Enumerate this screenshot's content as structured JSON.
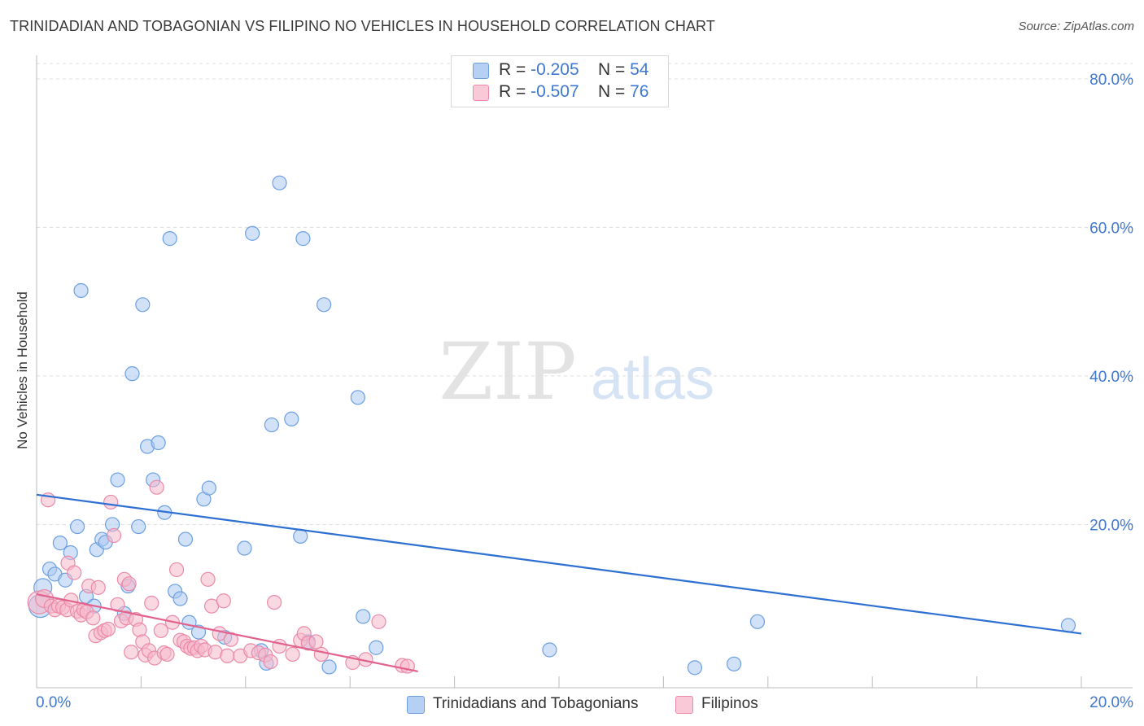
{
  "header": {
    "title": "TRINIDADIAN AND TOBAGONIAN VS FILIPINO NO VEHICLES IN HOUSEHOLD CORRELATION CHART",
    "source": "Source: ZipAtlas.com"
  },
  "watermark": {
    "zip": "ZIP",
    "atlas": "atlas"
  },
  "legend_top": [
    {
      "r_label": "R =",
      "r_value": "-0.205",
      "n_label": "N =",
      "n_value": "54"
    },
    {
      "r_label": "R =",
      "r_value": "-0.507",
      "n_label": "N =",
      "n_value": "76"
    }
  ],
  "legend_bottom": [
    {
      "label": "Trinidadians and Tobagonians"
    },
    {
      "label": "Filipinos"
    }
  ],
  "colors": {
    "blue_fill": "#a9c8f2",
    "blue_stroke": "#6d9fe0",
    "blue_line": "#2e6fd2",
    "pink_fill": "#f6b8cb",
    "pink_stroke": "#ea8aa8",
    "pink_line": "#e2628e",
    "axis_text": "#3f78d0",
    "grid": "#dddddd"
  },
  "chart_data": {
    "type": "scatter",
    "title": "TRINIDADIAN AND TOBAGONIAN VS FILIPINO NO VEHICLES IN HOUSEHOLD CORRELATION CHART",
    "xlabel": "",
    "ylabel": "No Vehicles in Household",
    "xlim": [
      0,
      20
    ],
    "ylim": [
      0,
      80
    ],
    "x_tick_labels": [
      "0.0%",
      "20.0%"
    ],
    "y_ticks": [
      20,
      40,
      60,
      80
    ],
    "y_tick_labels": [
      "20.0%",
      "40.0%",
      "60.0%",
      "80.0%"
    ],
    "legend_position": "top-center",
    "series": [
      {
        "name": "Trinidadians and Tobagonians",
        "R": -0.205,
        "N": 54,
        "trend": {
          "x": [
            0,
            20
          ],
          "y": [
            24.0,
            5.3
          ]
        },
        "points": [
          {
            "x": 0.07,
            "y": 9.0,
            "s": 3
          },
          {
            "x": 0.12,
            "y": 11.5,
            "s": 2
          },
          {
            "x": 0.25,
            "y": 14.0,
            "s": 1
          },
          {
            "x": 0.35,
            "y": 13.3,
            "s": 1
          },
          {
            "x": 0.45,
            "y": 17.5,
            "s": 1
          },
          {
            "x": 0.55,
            "y": 12.5,
            "s": 1
          },
          {
            "x": 0.65,
            "y": 16.2,
            "s": 1
          },
          {
            "x": 0.78,
            "y": 19.7,
            "s": 1
          },
          {
            "x": 0.85,
            "y": 51.5,
            "s": 1
          },
          {
            "x": 0.95,
            "y": 10.3,
            "s": 1
          },
          {
            "x": 1.1,
            "y": 9.0,
            "s": 1
          },
          {
            "x": 1.15,
            "y": 16.6,
            "s": 1
          },
          {
            "x": 1.25,
            "y": 18.0,
            "s": 1
          },
          {
            "x": 1.32,
            "y": 17.6,
            "s": 1
          },
          {
            "x": 1.45,
            "y": 20.0,
            "s": 1
          },
          {
            "x": 1.55,
            "y": 26.0,
            "s": 1
          },
          {
            "x": 1.68,
            "y": 8.0,
            "s": 1
          },
          {
            "x": 1.75,
            "y": 11.7,
            "s": 1
          },
          {
            "x": 1.83,
            "y": 40.3,
            "s": 1
          },
          {
            "x": 1.95,
            "y": 19.7,
            "s": 1
          },
          {
            "x": 2.03,
            "y": 49.6,
            "s": 1
          },
          {
            "x": 2.12,
            "y": 30.5,
            "s": 1
          },
          {
            "x": 2.23,
            "y": 26.0,
            "s": 1
          },
          {
            "x": 2.33,
            "y": 31.0,
            "s": 1
          },
          {
            "x": 2.45,
            "y": 21.6,
            "s": 1
          },
          {
            "x": 2.55,
            "y": 58.5,
            "s": 1
          },
          {
            "x": 2.65,
            "y": 11.0,
            "s": 1
          },
          {
            "x": 2.75,
            "y": 10.0,
            "s": 1
          },
          {
            "x": 2.85,
            "y": 18.0,
            "s": 1
          },
          {
            "x": 2.92,
            "y": 6.8,
            "s": 1
          },
          {
            "x": 3.1,
            "y": 5.5,
            "s": 1
          },
          {
            "x": 3.2,
            "y": 23.4,
            "s": 1
          },
          {
            "x": 3.3,
            "y": 24.9,
            "s": 1
          },
          {
            "x": 3.6,
            "y": 4.8,
            "s": 1
          },
          {
            "x": 3.98,
            "y": 16.8,
            "s": 1
          },
          {
            "x": 4.13,
            "y": 59.2,
            "s": 1
          },
          {
            "x": 4.3,
            "y": 3.0,
            "s": 1
          },
          {
            "x": 4.4,
            "y": 1.3,
            "s": 1
          },
          {
            "x": 4.5,
            "y": 33.4,
            "s": 1
          },
          {
            "x": 4.65,
            "y": 66.0,
            "s": 1
          },
          {
            "x": 4.88,
            "y": 34.2,
            "s": 1
          },
          {
            "x": 5.05,
            "y": 18.4,
            "s": 1
          },
          {
            "x": 5.1,
            "y": 58.5,
            "s": 1
          },
          {
            "x": 5.2,
            "y": 4.2,
            "s": 1
          },
          {
            "x": 5.5,
            "y": 49.6,
            "s": 1
          },
          {
            "x": 5.6,
            "y": 0.8,
            "s": 1
          },
          {
            "x": 6.15,
            "y": 37.1,
            "s": 1
          },
          {
            "x": 6.25,
            "y": 7.6,
            "s": 1
          },
          {
            "x": 6.5,
            "y": 3.4,
            "s": 1
          },
          {
            "x": 9.82,
            "y": 3.1,
            "s": 1
          },
          {
            "x": 12.6,
            "y": 0.7,
            "s": 1
          },
          {
            "x": 13.35,
            "y": 1.2,
            "s": 1
          },
          {
            "x": 13.8,
            "y": 6.9,
            "s": 1
          },
          {
            "x": 19.75,
            "y": 6.4,
            "s": 1
          }
        ]
      },
      {
        "name": "Filipinos",
        "R": -0.507,
        "N": 76,
        "trend": {
          "x": [
            0,
            7.3
          ],
          "y": [
            10.6,
            0.2
          ]
        },
        "points": [
          {
            "x": 0.05,
            "y": 9.5,
            "s": 3
          },
          {
            "x": 0.15,
            "y": 10.0,
            "s": 2
          },
          {
            "x": 0.22,
            "y": 23.3,
            "s": 1
          },
          {
            "x": 0.28,
            "y": 9.0,
            "s": 1
          },
          {
            "x": 0.35,
            "y": 8.5,
            "s": 1
          },
          {
            "x": 0.42,
            "y": 9.0,
            "s": 1
          },
          {
            "x": 0.5,
            "y": 8.8,
            "s": 1
          },
          {
            "x": 0.58,
            "y": 8.5,
            "s": 1
          },
          {
            "x": 0.6,
            "y": 14.8,
            "s": 1
          },
          {
            "x": 0.66,
            "y": 9.8,
            "s": 1
          },
          {
            "x": 0.72,
            "y": 13.5,
            "s": 1
          },
          {
            "x": 0.78,
            "y": 8.3,
            "s": 1
          },
          {
            "x": 0.85,
            "y": 7.8,
            "s": 1
          },
          {
            "x": 0.9,
            "y": 8.5,
            "s": 1
          },
          {
            "x": 0.96,
            "y": 8.2,
            "s": 1
          },
          {
            "x": 1.0,
            "y": 11.7,
            "s": 1
          },
          {
            "x": 1.08,
            "y": 7.4,
            "s": 1
          },
          {
            "x": 1.13,
            "y": 5.0,
            "s": 1
          },
          {
            "x": 1.18,
            "y": 11.5,
            "s": 1
          },
          {
            "x": 1.23,
            "y": 5.4,
            "s": 1
          },
          {
            "x": 1.3,
            "y": 5.7,
            "s": 1
          },
          {
            "x": 1.37,
            "y": 5.9,
            "s": 1
          },
          {
            "x": 1.42,
            "y": 23.0,
            "s": 1
          },
          {
            "x": 1.48,
            "y": 18.5,
            "s": 1
          },
          {
            "x": 1.55,
            "y": 9.2,
            "s": 1
          },
          {
            "x": 1.62,
            "y": 7.0,
            "s": 1
          },
          {
            "x": 1.68,
            "y": 12.6,
            "s": 1
          },
          {
            "x": 1.72,
            "y": 7.4,
            "s": 1
          },
          {
            "x": 1.77,
            "y": 12.0,
            "s": 1
          },
          {
            "x": 1.81,
            "y": 2.8,
            "s": 1
          },
          {
            "x": 1.9,
            "y": 7.2,
            "s": 1
          },
          {
            "x": 1.97,
            "y": 5.8,
            "s": 1
          },
          {
            "x": 2.03,
            "y": 4.2,
            "s": 1
          },
          {
            "x": 2.08,
            "y": 2.4,
            "s": 1
          },
          {
            "x": 2.15,
            "y": 3.0,
            "s": 1
          },
          {
            "x": 2.2,
            "y": 9.4,
            "s": 1
          },
          {
            "x": 2.26,
            "y": 2.0,
            "s": 1
          },
          {
            "x": 2.3,
            "y": 25.0,
            "s": 1
          },
          {
            "x": 2.38,
            "y": 5.7,
            "s": 1
          },
          {
            "x": 2.44,
            "y": 2.7,
            "s": 1
          },
          {
            "x": 2.5,
            "y": 2.5,
            "s": 1
          },
          {
            "x": 2.6,
            "y": 6.8,
            "s": 1
          },
          {
            "x": 2.68,
            "y": 13.9,
            "s": 1
          },
          {
            "x": 2.75,
            "y": 4.4,
            "s": 1
          },
          {
            "x": 2.82,
            "y": 4.2,
            "s": 1
          },
          {
            "x": 2.88,
            "y": 3.6,
            "s": 1
          },
          {
            "x": 2.95,
            "y": 3.3,
            "s": 1
          },
          {
            "x": 3.02,
            "y": 3.4,
            "s": 1
          },
          {
            "x": 3.08,
            "y": 3.0,
            "s": 1
          },
          {
            "x": 3.15,
            "y": 3.6,
            "s": 1
          },
          {
            "x": 3.22,
            "y": 3.1,
            "s": 1
          },
          {
            "x": 3.28,
            "y": 12.6,
            "s": 1
          },
          {
            "x": 3.35,
            "y": 9.0,
            "s": 1
          },
          {
            "x": 3.42,
            "y": 2.8,
            "s": 1
          },
          {
            "x": 3.5,
            "y": 5.3,
            "s": 1
          },
          {
            "x": 3.58,
            "y": 9.7,
            "s": 1
          },
          {
            "x": 3.65,
            "y": 2.3,
            "s": 1
          },
          {
            "x": 3.72,
            "y": 4.5,
            "s": 1
          },
          {
            "x": 3.9,
            "y": 2.3,
            "s": 1
          },
          {
            "x": 4.1,
            "y": 3.0,
            "s": 1
          },
          {
            "x": 4.25,
            "y": 2.7,
            "s": 1
          },
          {
            "x": 4.38,
            "y": 2.4,
            "s": 1
          },
          {
            "x": 4.48,
            "y": 1.5,
            "s": 1
          },
          {
            "x": 4.55,
            "y": 9.5,
            "s": 1
          },
          {
            "x": 4.65,
            "y": 3.6,
            "s": 1
          },
          {
            "x": 4.9,
            "y": 2.5,
            "s": 1
          },
          {
            "x": 5.05,
            "y": 4.4,
            "s": 1
          },
          {
            "x": 5.12,
            "y": 5.3,
            "s": 1
          },
          {
            "x": 5.2,
            "y": 4.0,
            "s": 1
          },
          {
            "x": 5.35,
            "y": 4.2,
            "s": 1
          },
          {
            "x": 5.45,
            "y": 2.5,
            "s": 1
          },
          {
            "x": 6.05,
            "y": 1.4,
            "s": 1
          },
          {
            "x": 6.3,
            "y": 1.8,
            "s": 1
          },
          {
            "x": 6.55,
            "y": 6.9,
            "s": 1
          },
          {
            "x": 7.0,
            "y": 1.0,
            "s": 1
          },
          {
            "x": 7.1,
            "y": 0.9,
            "s": 1
          }
        ]
      }
    ]
  }
}
